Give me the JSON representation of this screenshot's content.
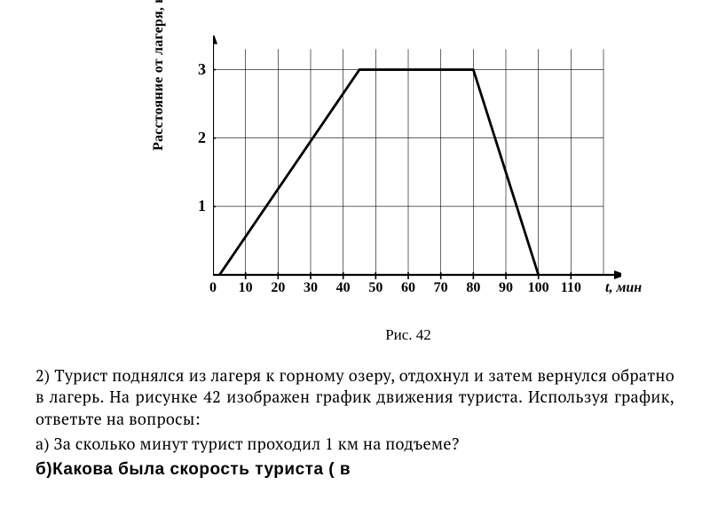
{
  "chart": {
    "type": "line",
    "ylabel": "Расстояние от лагеря, км",
    "xlabel": "t, мин",
    "xlim": [
      0,
      120
    ],
    "ylim": [
      0,
      3.5
    ],
    "xtick_step": 10,
    "ytick_step": 1,
    "xtick_labels": [
      "0",
      "10",
      "20",
      "30",
      "40",
      "50",
      "60",
      "70",
      "80",
      "90",
      "100",
      "110"
    ],
    "ytick_labels": [
      "1",
      "2",
      "3"
    ],
    "background_color": "#ffffff",
    "grid_color": "#000000",
    "grid_width": 0.6,
    "axis_color": "#000000",
    "axis_width": 2.2,
    "series": {
      "color": "#000000",
      "width": 2.8,
      "points": [
        {
          "x": 2,
          "y": 0
        },
        {
          "x": 45,
          "y": 3
        },
        {
          "x": 80,
          "y": 3
        },
        {
          "x": 100,
          "y": 0
        }
      ]
    }
  },
  "caption": "Рис. 42",
  "problem": {
    "intro": "2) Турист поднялся из лагеря к горному озеру, отдохнул и затем вернулся обратно в лагерь. На рисунке 42 изображен график движения туриста. Используя график, ответьте на вопросы:",
    "qa": "а) За сколько минут турист проходил 1 км на подъеме?",
    "qb": "б)Какова была скорость туриста ( в"
  }
}
